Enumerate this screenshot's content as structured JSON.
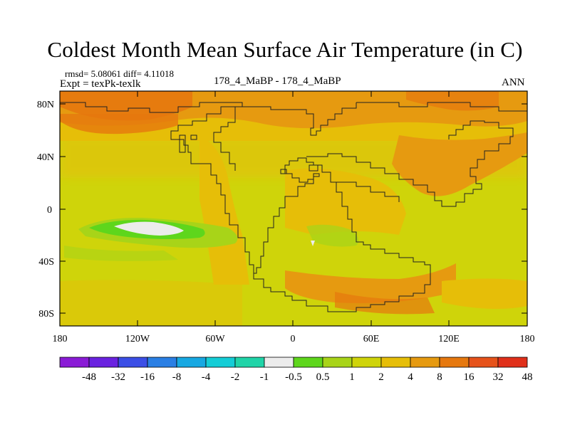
{
  "title": "Coldest Month Mean Surface Air Temperature (in C)",
  "stats_line": "rmsd= 5.08061 diff= 4.11018",
  "expt_line": "Expt = texPk-texlk",
  "center_label": "178_4_MaBP - 178_4_MaBP",
  "period_label": "ANN",
  "lat_labels": [
    "80N",
    "40N",
    "0",
    "40S",
    "80S"
  ],
  "lon_labels": [
    "180",
    "120W",
    "60W",
    "0",
    "60E",
    "120E",
    "180"
  ],
  "colorbar": {
    "colors": [
      "#8a1bd6",
      "#6a22e0",
      "#3b4ee6",
      "#2a7fe4",
      "#17a8e2",
      "#14cdd6",
      "#20d4a8",
      "#ececec",
      "#5ed61c",
      "#a8d418",
      "#cfd40a",
      "#e6be08",
      "#e69a10",
      "#e6780e",
      "#e6521a",
      "#e0301a"
    ],
    "labels": [
      "-48",
      "-32",
      "-16",
      "-8",
      "-4",
      "-2",
      "-1",
      "-0.5",
      "0.5",
      "1",
      "2",
      "4",
      "8",
      "16",
      "32",
      "48"
    ]
  }
}
